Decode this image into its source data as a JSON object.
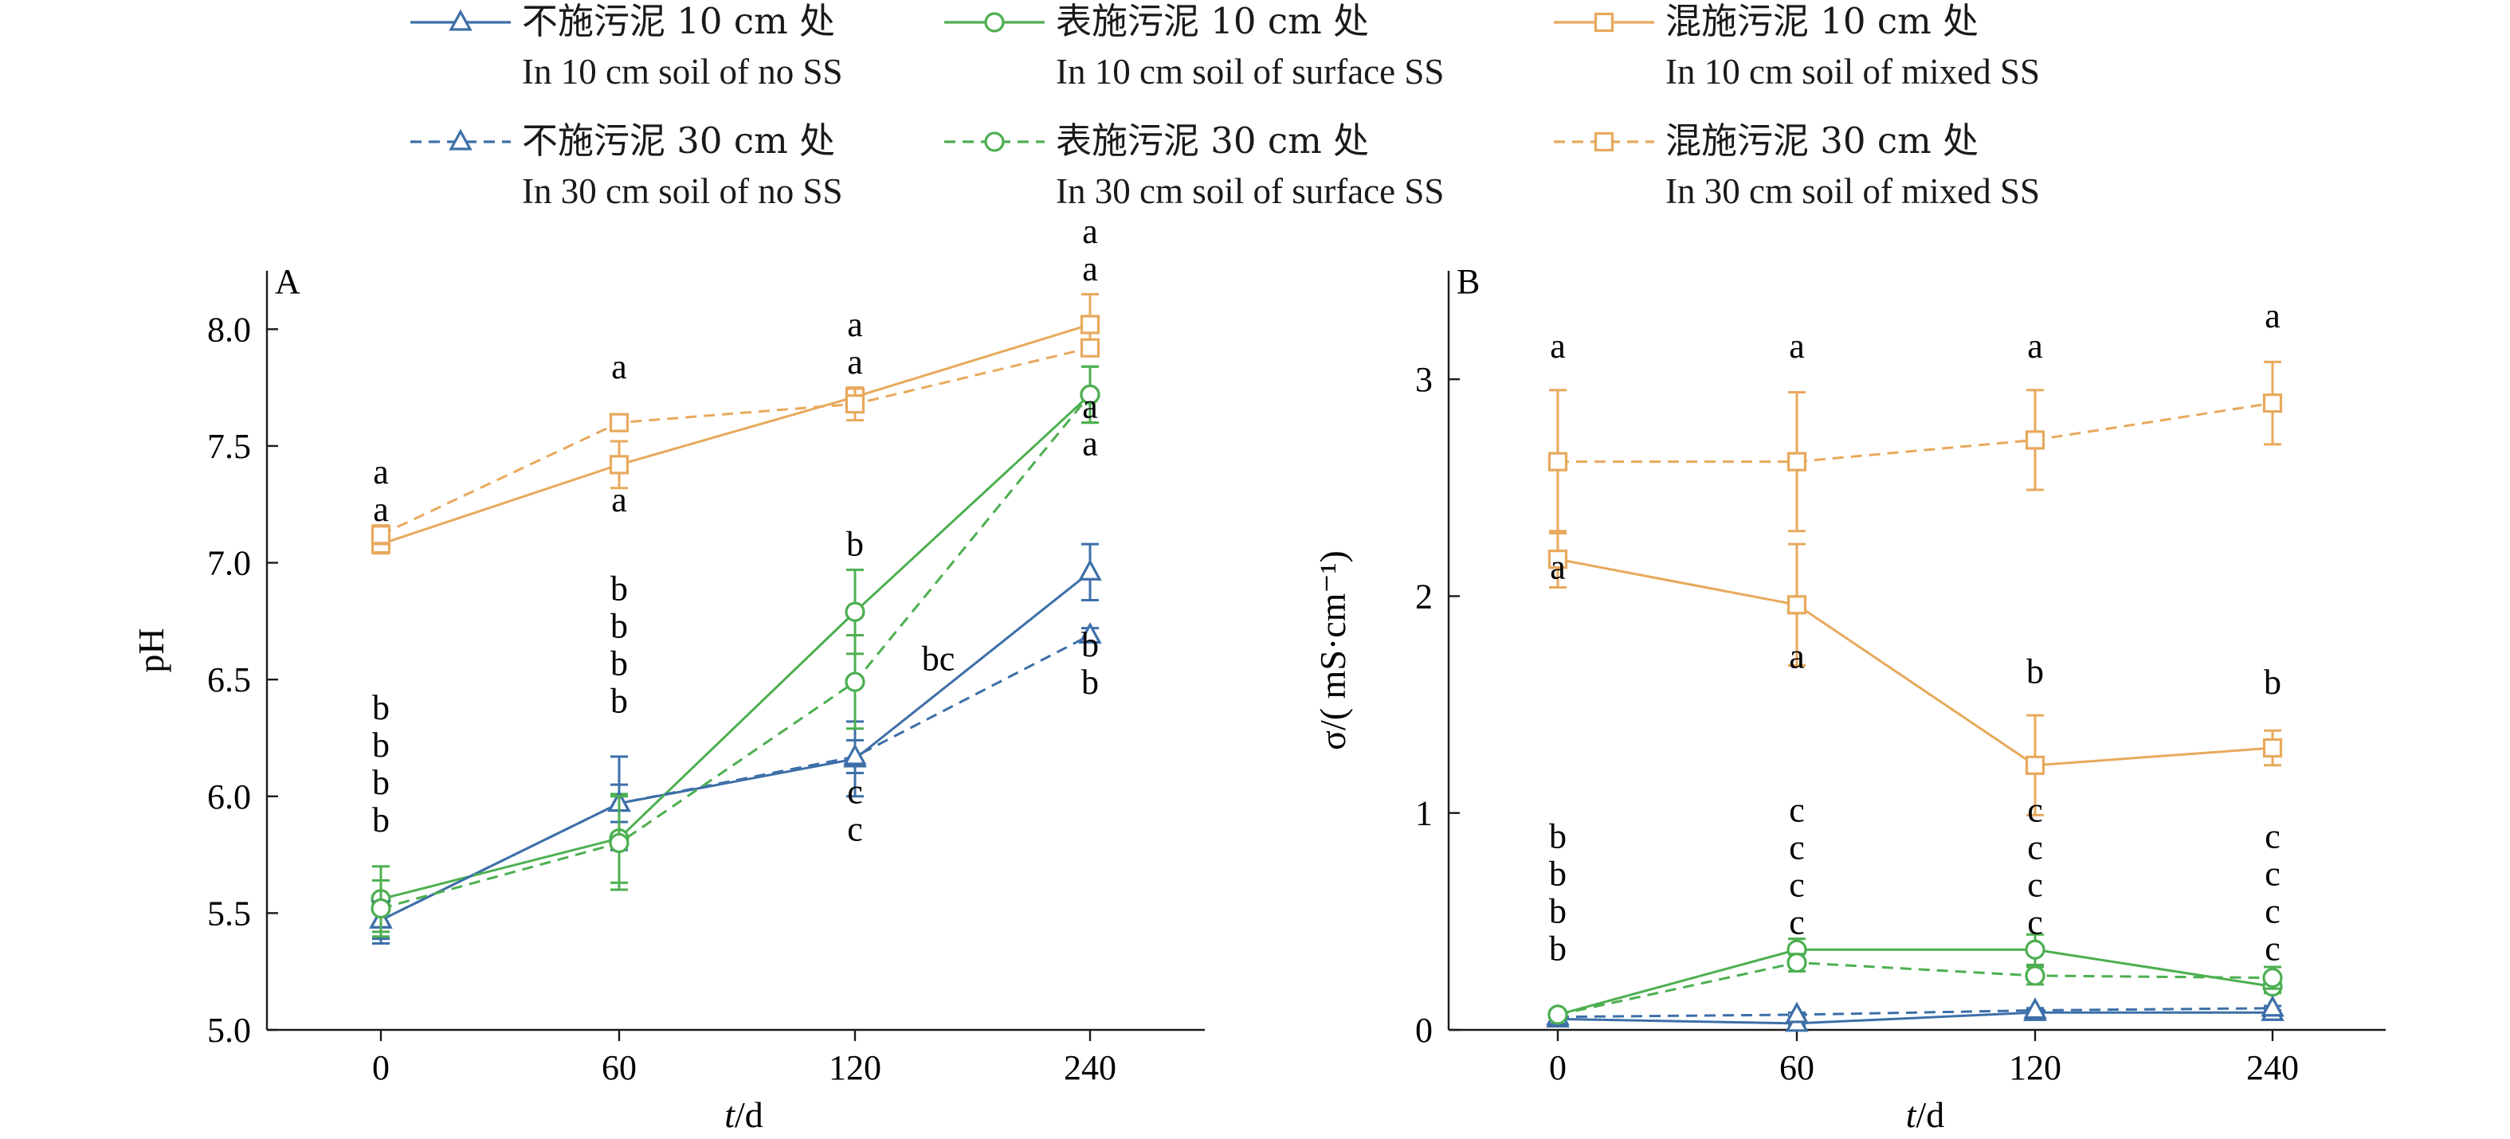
{
  "legend": [
    {
      "zh": "不施污泥 10 cm 处",
      "en": "In 10 cm soil of no SS",
      "color": "#3d6fa8",
      "dash": "solid",
      "marker": "triangle"
    },
    {
      "zh": "表施污泥 10 cm 处",
      "en": "In 10 cm soil of surface SS",
      "color": "#4caf50",
      "dash": "solid",
      "marker": "circle"
    },
    {
      "zh": "混施污泥 10 cm 处",
      "en": "In 10 cm soil of mixed SS",
      "color": "#e8a95c",
      "dash": "solid",
      "marker": "square"
    },
    {
      "zh": "不施污泥 30 cm 处",
      "en": "In 30 cm soil of no SS",
      "color": "#3d6fa8",
      "dash": "dashed",
      "marker": "triangle"
    },
    {
      "zh": "表施污泥 30 cm 处",
      "en": "In 30 cm soil of surface SS",
      "color": "#4caf50",
      "dash": "dashed",
      "marker": "circle"
    },
    {
      "zh": "混施污泥 30 cm 处",
      "en": "In 30 cm soil of mixed SS",
      "color": "#e8a95c",
      "dash": "dashed",
      "marker": "square"
    }
  ],
  "chart_data": [
    {
      "panel": "A",
      "type": "line",
      "xlabel_italic": "t",
      "xlabel_rest": "/d",
      "ylabel": "pH",
      "x_ticks": [
        "0",
        "60",
        "120",
        "240"
      ],
      "ylim": [
        5.0,
        8.25
      ],
      "y_ticks": [
        "5.0",
        "5.5",
        "6.0",
        "6.5",
        "7.0",
        "7.5",
        "8.0"
      ],
      "series": [
        {
          "values": [
            5.47,
            5.97,
            6.16,
            6.96
          ],
          "err": [
            0.1,
            0.2,
            0.16,
            0.12
          ]
        },
        {
          "values": [
            5.56,
            5.82,
            6.79,
            7.72
          ],
          "err": [
            0.14,
            0.19,
            0.18,
            0.12
          ]
        },
        {
          "values": [
            7.08,
            7.42,
            7.71,
            8.02
          ],
          "err": [
            0.04,
            0.1,
            0.04,
            0.13
          ]
        },
        {
          "values": [
            5.47,
            5.97,
            6.17,
            6.69
          ],
          "err": [
            0.08,
            0.08,
            0.07,
            0.03
          ]
        },
        {
          "values": [
            5.52,
            5.8,
            6.49,
            7.72
          ],
          "err": [
            0.12,
            0.2,
            0.2,
            0.12
          ]
        },
        {
          "values": [
            7.12,
            7.6,
            7.68,
            7.92
          ],
          "err": [
            0.04,
            0.03,
            0.07,
            0.03
          ]
        }
      ],
      "annotations": [
        {
          "xi": 0,
          "labels": [
            "a",
            "a"
          ],
          "top": 7.34
        },
        {
          "xi": 0,
          "labels": [
            "b",
            "b",
            "b",
            "b"
          ],
          "top": 6.33
        },
        {
          "xi": 1,
          "labels": [
            "a"
          ],
          "top": 7.79
        },
        {
          "xi": 1,
          "labels": [
            "a"
          ],
          "top": 7.22
        },
        {
          "xi": 1,
          "labels": [
            "b",
            "b",
            "b",
            "b"
          ],
          "top": 6.84
        },
        {
          "xi": 2,
          "labels": [
            "a",
            "a"
          ],
          "top": 7.97
        },
        {
          "xi": 2,
          "labels": [
            "b"
          ],
          "top": 7.03
        },
        {
          "xi": 2,
          "labels": [
            "bc"
          ],
          "top": 6.54,
          "dx": 0.28
        },
        {
          "xi": 2,
          "labels": [
            "c",
            "c"
          ],
          "top": 5.97
        },
        {
          "xi": 3,
          "labels": [
            "a",
            "a"
          ],
          "top": 8.37
        },
        {
          "xi": 3,
          "labels": [
            "a",
            "a"
          ],
          "top": 7.62
        },
        {
          "xi": 3,
          "labels": [
            "b",
            "b"
          ],
          "top": 6.6
        }
      ]
    },
    {
      "panel": "B",
      "type": "line",
      "xlabel_italic": "t",
      "xlabel_rest": "/d",
      "ylabel": "σ/( mS·cm⁻¹)",
      "x_ticks": [
        "0",
        "60",
        "120",
        "240"
      ],
      "ylim": [
        0,
        3.5
      ],
      "y_ticks": [
        "0",
        "1",
        "2",
        "3"
      ],
      "series": [
        {
          "values": [
            0.05,
            0.03,
            0.08,
            0.08
          ],
          "err": [
            0.01,
            0.01,
            0.01,
            0.01
          ]
        },
        {
          "values": [
            0.07,
            0.37,
            0.37,
            0.2
          ],
          "err": [
            0.02,
            0.05,
            0.07,
            0.03
          ]
        },
        {
          "values": [
            2.17,
            1.96,
            1.22,
            1.3
          ],
          "err": [
            0.13,
            0.28,
            0.23,
            0.08
          ]
        },
        {
          "values": [
            0.06,
            0.07,
            0.09,
            0.1
          ],
          "err": [
            0.01,
            0.01,
            0.01,
            0.01
          ]
        },
        {
          "values": [
            0.07,
            0.31,
            0.25,
            0.24
          ],
          "err": [
            0.01,
            0.04,
            0.04,
            0.05
          ]
        },
        {
          "values": [
            2.62,
            2.62,
            2.72,
            2.89
          ],
          "err": [
            0.33,
            0.32,
            0.23,
            0.19
          ]
        }
      ],
      "annotations": [
        {
          "xi": 0,
          "labels": [
            "a"
          ],
          "top": 3.1
        },
        {
          "xi": 0,
          "labels": [
            "a"
          ],
          "top": 2.08
        },
        {
          "xi": 0,
          "labels": [
            "b",
            "b",
            "b",
            "b"
          ],
          "top": 0.84
        },
        {
          "xi": 1,
          "labels": [
            "a"
          ],
          "top": 3.1
        },
        {
          "xi": 1,
          "labels": [
            "a"
          ],
          "top": 1.67
        },
        {
          "xi": 1,
          "labels": [
            "c",
            "c",
            "c",
            "c"
          ],
          "top": 0.96
        },
        {
          "xi": 2,
          "labels": [
            "a"
          ],
          "top": 3.1
        },
        {
          "xi": 2,
          "labels": [
            "b"
          ],
          "top": 1.6
        },
        {
          "xi": 2,
          "labels": [
            "c",
            "c",
            "c",
            "c"
          ],
          "top": 0.96
        },
        {
          "xi": 3,
          "labels": [
            "a"
          ],
          "top": 3.24
        },
        {
          "xi": 3,
          "labels": [
            "b"
          ],
          "top": 1.55
        },
        {
          "xi": 3,
          "labels": [
            "c",
            "c",
            "c",
            "c"
          ],
          "top": 0.84
        }
      ]
    }
  ]
}
